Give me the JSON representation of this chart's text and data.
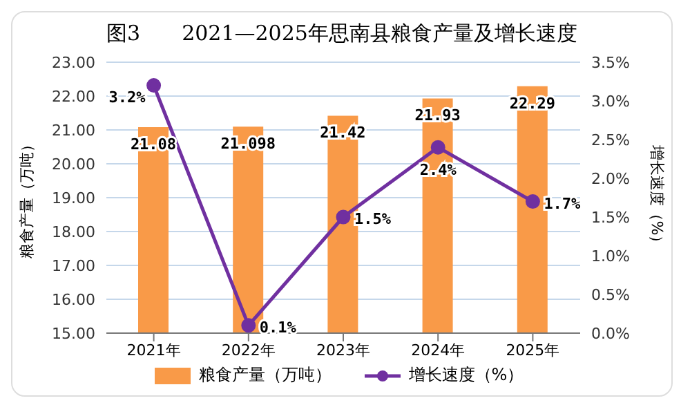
{
  "chart_data": {
    "type": "bar",
    "title": "图3　　2021—2025年思南县粮食产量及增长速度",
    "categories": [
      "2021年",
      "2022年",
      "2023年",
      "2024年",
      "2025年"
    ],
    "series": [
      {
        "name": "粮食产量（万吨）",
        "color": "#f99a48",
        "values": [
          21.08,
          21.098,
          21.42,
          21.93,
          22.29
        ],
        "value_labels": [
          "21.08",
          "21.098",
          "21.42",
          "21.93",
          "22.29"
        ]
      },
      {
        "name": "增长速度（%）",
        "type": "line",
        "axis": "y2",
        "color": "#7030a0",
        "values": [
          3.2,
          0.1,
          1.5,
          2.4,
          1.7
        ],
        "value_labels": [
          "3.2%",
          "0.1%",
          "1.5%",
          "2.4%",
          "1.7%"
        ]
      }
    ],
    "ylabel": "粮食产量（万吨）",
    "y2label": "增长速度（%）",
    "ylim": [
      15,
      23
    ],
    "yticks": [
      {
        "value": 15,
        "label": "15.00"
      },
      {
        "value": 16,
        "label": "16.00"
      },
      {
        "value": 17,
        "label": "17.00"
      },
      {
        "value": 18,
        "label": "18.00"
      },
      {
        "value": 19,
        "label": "19.00"
      },
      {
        "value": 20,
        "label": "20.00"
      },
      {
        "value": 21,
        "label": "21.00"
      },
      {
        "value": 22,
        "label": "22.00"
      },
      {
        "value": 23,
        "label": "23.00"
      }
    ],
    "y2lim": [
      0,
      3.5
    ],
    "y2ticks": [
      {
        "value": 0,
        "label": "0.0%"
      },
      {
        "value": 0.5,
        "label": "0.5%"
      },
      {
        "value": 1,
        "label": "1.0%"
      },
      {
        "value": 1.5,
        "label": "1.5%"
      },
      {
        "value": 2,
        "label": "2.0%"
      },
      {
        "value": 2.5,
        "label": "2.5%"
      },
      {
        "value": 3,
        "label": "3.0%"
      },
      {
        "value": 3.5,
        "label": "3.5%"
      }
    ],
    "grid": "y",
    "legend": "bottom",
    "marker": "circle",
    "line_style": "solid"
  }
}
